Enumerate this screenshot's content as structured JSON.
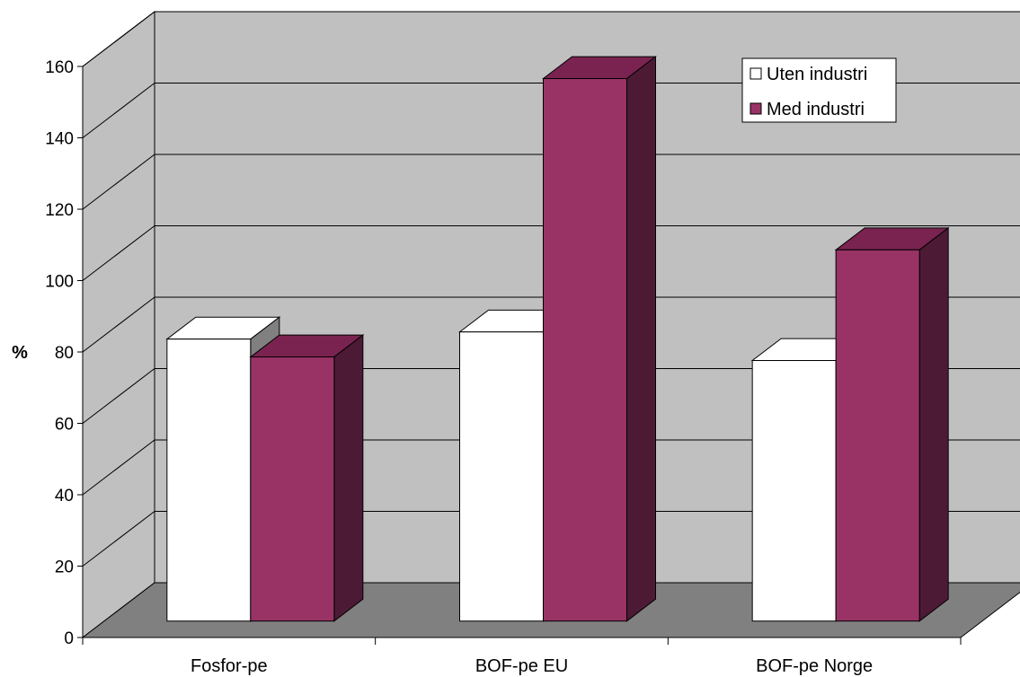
{
  "chart_data": {
    "type": "bar",
    "title": "",
    "xlabel": "",
    "ylabel": "%",
    "categories": [
      "Fosfor-pe",
      "BOF-pe EU",
      "BOF-pe Norge"
    ],
    "series": [
      {
        "name": "Uten industri",
        "values": [
          79,
          81,
          73
        ]
      },
      {
        "name": "Med industri",
        "values": [
          74,
          152,
          104
        ]
      }
    ],
    "ylim": [
      0,
      160
    ],
    "yticks": [
      "0",
      "20",
      "40",
      "60",
      "80",
      "100",
      "120",
      "140",
      "160"
    ],
    "grid": true,
    "legend": "top-right",
    "three_d": true,
    "colors": {
      "back_wall": "#c0c0c0",
      "floor": "#808080",
      "series": [
        {
          "front": "#ffffff",
          "top": "#ffffff",
          "side": "#808080"
        },
        {
          "front": "#993366",
          "top": "#7a2350",
          "side": "#4d1a36"
        }
      ]
    }
  }
}
